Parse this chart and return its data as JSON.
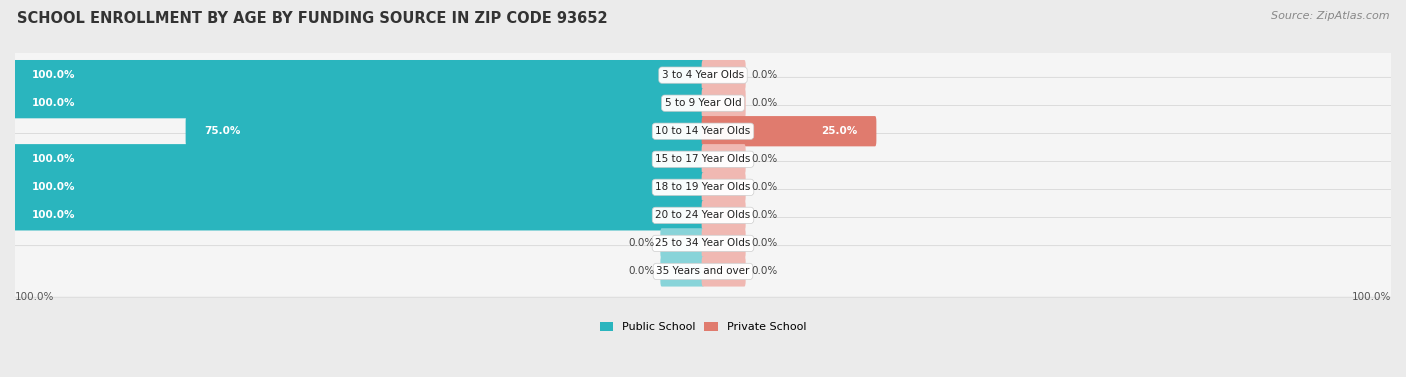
{
  "title": "SCHOOL ENROLLMENT BY AGE BY FUNDING SOURCE IN ZIP CODE 93652",
  "source": "Source: ZipAtlas.com",
  "categories": [
    "3 to 4 Year Olds",
    "5 to 9 Year Old",
    "10 to 14 Year Olds",
    "15 to 17 Year Olds",
    "18 to 19 Year Olds",
    "20 to 24 Year Olds",
    "25 to 34 Year Olds",
    "35 Years and over"
  ],
  "public_values": [
    100.0,
    100.0,
    75.0,
    100.0,
    100.0,
    100.0,
    0.0,
    0.0
  ],
  "private_values": [
    0.0,
    0.0,
    25.0,
    0.0,
    0.0,
    0.0,
    0.0,
    0.0
  ],
  "public_color": "#2ab5be",
  "public_color_light": "#88d4d9",
  "private_color": "#e07b6e",
  "private_color_light": "#f0b8b2",
  "bg_color": "#ebebeb",
  "row_bg_color": "#f5f5f5",
  "row_edge_color": "#d8d8d8",
  "axis_label_left": "100.0%",
  "axis_label_right": "100.0%",
  "title_fontsize": 10.5,
  "source_fontsize": 8,
  "bar_label_fontsize": 7.5,
  "cat_label_fontsize": 7.5,
  "legend_fontsize": 8,
  "min_bar_stub": 6.0
}
